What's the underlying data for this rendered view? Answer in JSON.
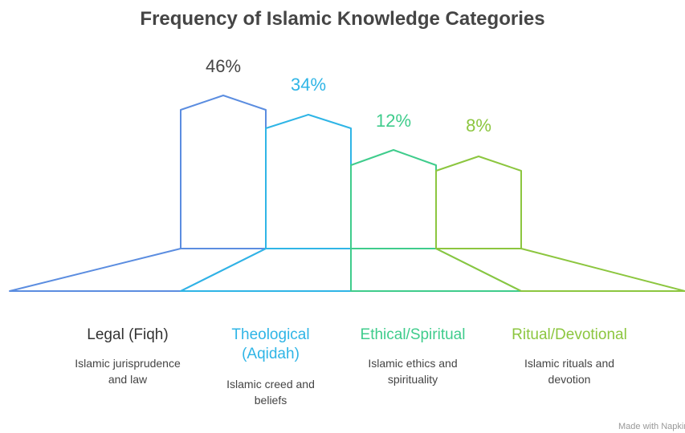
{
  "title": "Frequency of Islamic Knowledge Categories",
  "items": [
    {
      "label": "Legal (Fiqh)",
      "value": "46%",
      "description": "Islamic jurisprudence and law"
    },
    {
      "label": "Theological (Aqidah)",
      "value": "34%",
      "description": "Islamic creed and beliefs"
    },
    {
      "label": "Ethical/Spiritual",
      "value": "12%",
      "description": "Islamic ethics and spirituality"
    },
    {
      "label": "Ritual/Devotional",
      "value": "8%",
      "description": "Islamic rituals and devotion"
    }
  ],
  "footer": "Made with Napkin"
}
